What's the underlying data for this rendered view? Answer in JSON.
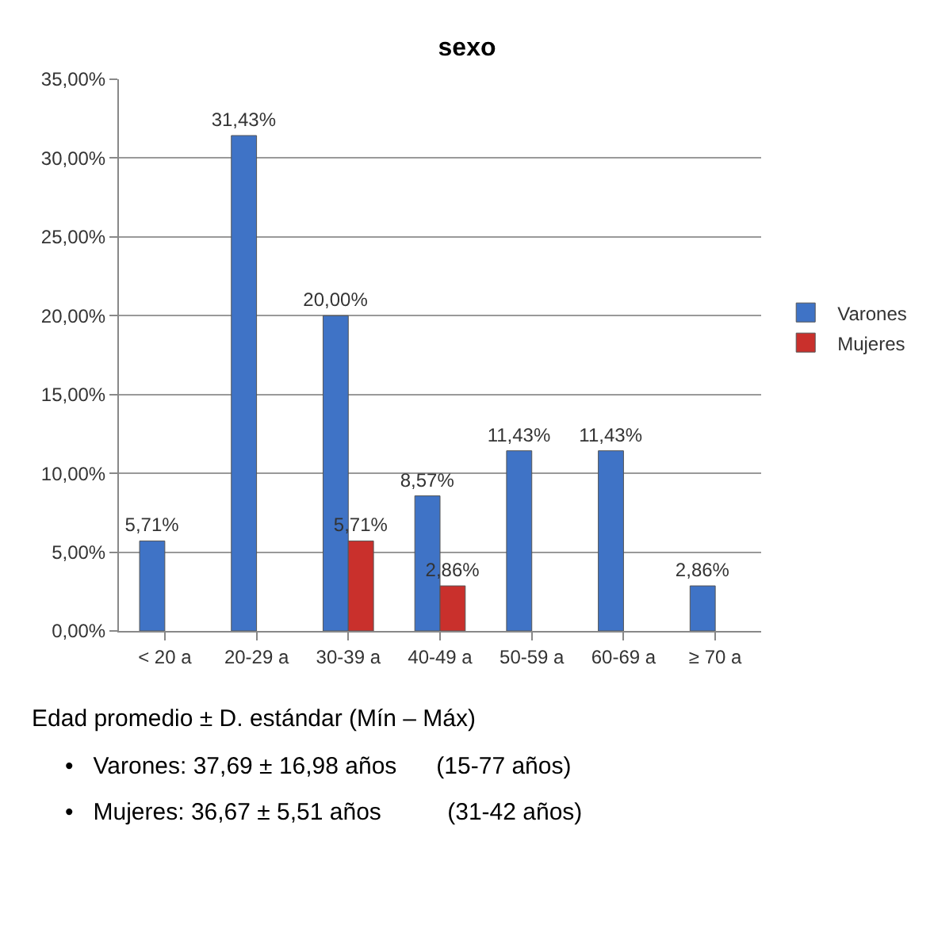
{
  "chart_data": {
    "type": "bar",
    "title": "sexo",
    "categories": [
      "< 20 a",
      "20-29 a",
      "30-39 a",
      "40-49 a",
      "50-59 a",
      "60-69 a",
      "≥ 70 a"
    ],
    "series": [
      {
        "name": "Varones",
        "color": "#3f73c6",
        "values": [
          5.71,
          31.43,
          20.0,
          8.57,
          11.43,
          11.43,
          2.86
        ],
        "value_labels": [
          "5,71%",
          "31,43%",
          "20,00%",
          "8,57%",
          "11,43%",
          "11,43%",
          "2,86%"
        ]
      },
      {
        "name": "Mujeres",
        "color": "#c9302c",
        "values": [
          null,
          null,
          5.71,
          2.86,
          null,
          null,
          null
        ],
        "value_labels": [
          null,
          null,
          "5,71%",
          "2,86%",
          null,
          null,
          null
        ]
      }
    ],
    "ylim": [
      0,
      35
    ],
    "yticks": [
      {
        "value": 0,
        "label": "0,00%"
      },
      {
        "value": 5,
        "label": "5,00%"
      },
      {
        "value": 10,
        "label": "10,00%"
      },
      {
        "value": 15,
        "label": "15,00%"
      },
      {
        "value": 20,
        "label": "20,00%"
      },
      {
        "value": 25,
        "label": "25,00%"
      },
      {
        "value": 30,
        "label": "30,00%"
      },
      {
        "value": 35,
        "label": "35,00%"
      }
    ],
    "grid": "y",
    "legend": "right",
    "annotations": [
      "Edad promedio ± D. estándar (Mín – Máx)",
      "•   Varones: 37,69 ± 16,98 años      (15-77 años)",
      "•   Mujeres: 36,67 ± 5,51 años          (31-42 años)"
    ]
  }
}
